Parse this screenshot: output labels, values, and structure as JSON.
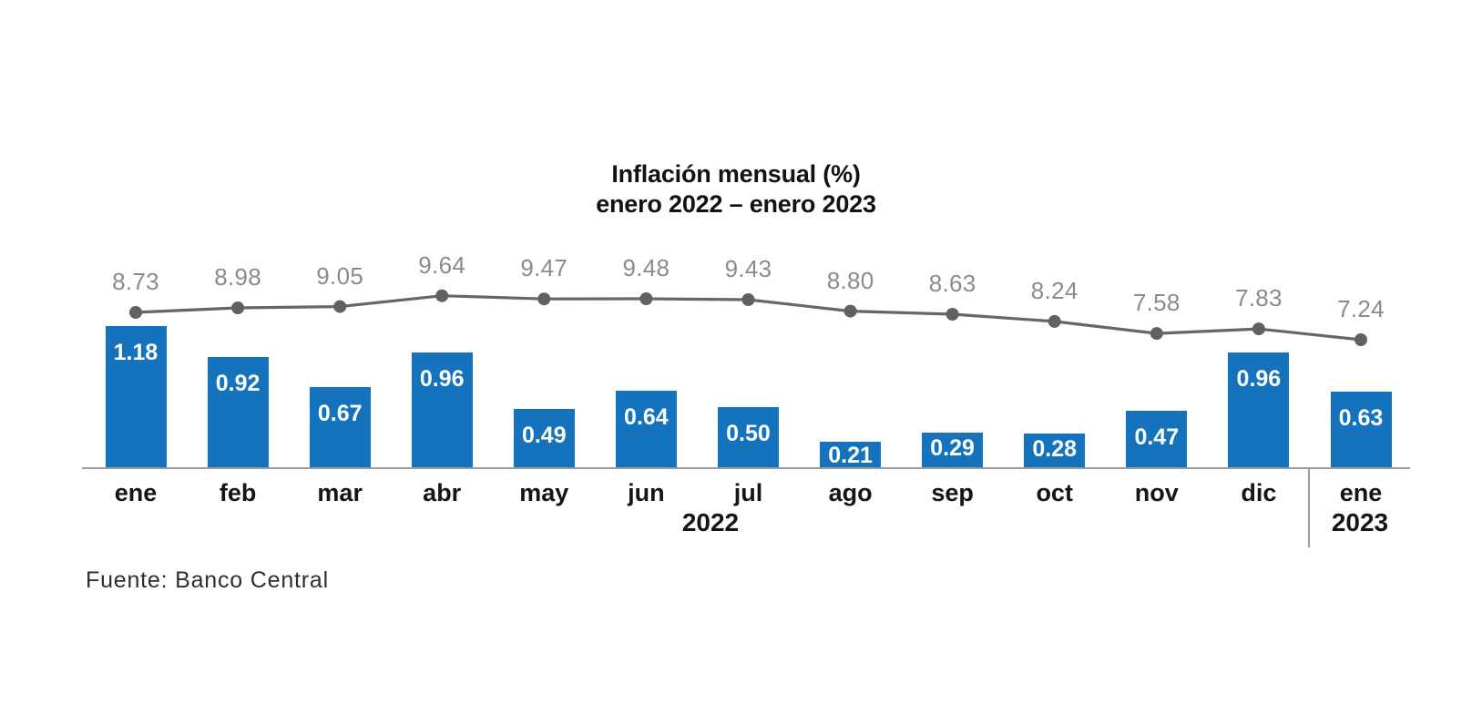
{
  "title": {
    "line1": "Inflación mensual (%)",
    "line2": "enero 2022 – enero 2023"
  },
  "source": "Fuente: Banco Central",
  "colors": {
    "bar": "#1473BC",
    "bar_label": "#FFFFFF",
    "line": "#666666",
    "line_marker": "#616161",
    "line_label": "#8A8B8E",
    "axis": "#9B9B9B",
    "text": "#151515"
  },
  "chart_data": {
    "type": "bar",
    "subtype": "column chart with overlaid line series and point markers",
    "title": "Inflación mensual (%)",
    "subtitle": "enero 2022 – enero 2023",
    "categories": [
      "ene",
      "feb",
      "mar",
      "abr",
      "may",
      "jun",
      "jul",
      "ago",
      "sep",
      "oct",
      "nov",
      "dic",
      "ene"
    ],
    "year_left": "2022",
    "year_right": "2023",
    "series": [
      {
        "id": "monthly-inflation-bars",
        "type": "bar",
        "color": "#1473BC",
        "values": [
          1.18,
          0.92,
          0.67,
          0.96,
          0.49,
          0.64,
          0.5,
          0.21,
          0.29,
          0.28,
          0.47,
          0.96,
          0.63
        ],
        "data_labels": [
          "1.18",
          "0.92",
          "0.67",
          "0.96",
          "0.49",
          "0.64",
          "0.50",
          "0.21",
          "0.29",
          "0.28",
          "0.47",
          "0.96",
          "0.63"
        ]
      },
      {
        "id": "overlaid-line",
        "type": "line",
        "color": "#666666",
        "values": [
          8.73,
          8.98,
          9.05,
          9.64,
          9.47,
          9.48,
          9.43,
          8.8,
          8.63,
          8.24,
          7.58,
          7.83,
          7.24
        ],
        "data_labels": [
          "8.73",
          "8.98",
          "9.05",
          "9.64",
          "9.47",
          "9.48",
          "9.43",
          "8.80",
          "8.63",
          "8.24",
          "7.58",
          "7.83",
          "7.24"
        ]
      }
    ],
    "legend": "none",
    "grid": false,
    "y_axis": "hidden",
    "source": "Fuente: Banco Central"
  }
}
